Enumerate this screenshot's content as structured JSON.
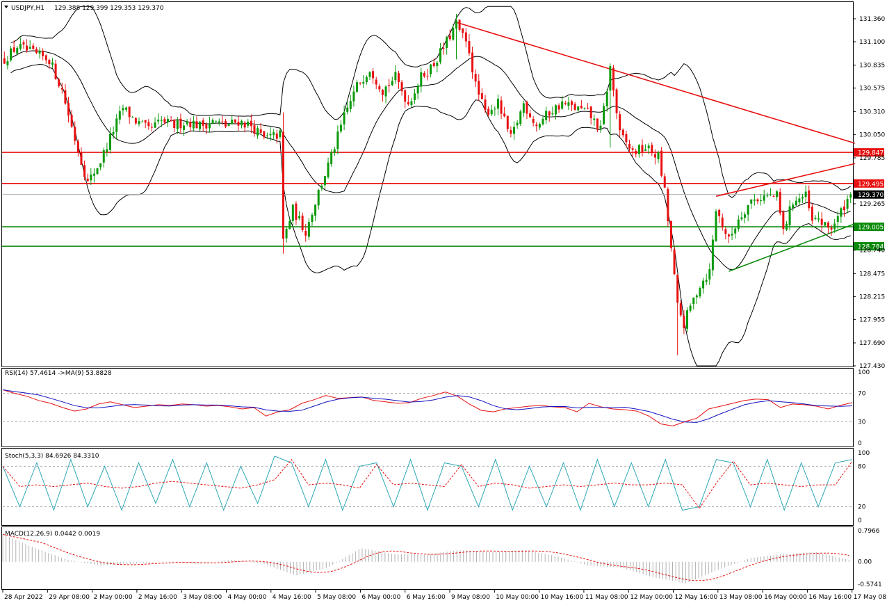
{
  "chart_data": [
    {
      "type": "candlestick",
      "symbol_label": "USDJPY,H1",
      "ohlc_label": "129.388 129.399 129.353 129.370",
      "ylim": [
        127.4,
        131.5
      ],
      "y_ticks": [
        "131.360",
        "131.100",
        "130.835",
        "130.575",
        "130.310",
        "130.050",
        "129.785",
        "129.265",
        "128.740",
        "128.475",
        "128.215",
        "127.955",
        "127.690",
        "127.430"
      ],
      "x_ticks": [
        "28 Apr 2022",
        "29 Apr 08:00",
        "2 May 00:00",
        "2 May 16:00",
        "3 May 08:00",
        "4 May 00:00",
        "4 May 16:00",
        "5 May 08:00",
        "6 May 00:00",
        "6 May 16:00",
        "9 May 08:00",
        "10 May 00:00",
        "10 May 16:00",
        "11 May 08:00",
        "12 May 00:00",
        "12 May 16:00",
        "13 May 08:00",
        "16 May 00:00",
        "16 May 16:00",
        "17 May 08:00"
      ],
      "price_path": [
        [
          0,
          130.9
        ],
        [
          4,
          131.05
        ],
        [
          10,
          130.95
        ],
        [
          14,
          130.9
        ],
        [
          18,
          130.55
        ],
        [
          22,
          130.0
        ],
        [
          26,
          129.5
        ],
        [
          30,
          129.75
        ],
        [
          34,
          130.1
        ],
        [
          37,
          130.35
        ],
        [
          41,
          130.2
        ],
        [
          45,
          130.1
        ],
        [
          49,
          130.2
        ],
        [
          53,
          130.15
        ],
        [
          57,
          130.2
        ],
        [
          61,
          130.15
        ],
        [
          65,
          130.2
        ],
        [
          69,
          130.15
        ],
        [
          73,
          130.2
        ],
        [
          77,
          130.15
        ],
        [
          81,
          130.0
        ],
        [
          86,
          130.05
        ],
        [
          87,
          128.85
        ],
        [
          90,
          129.2
        ],
        [
          94,
          128.95
        ],
        [
          98,
          129.4
        ],
        [
          102,
          129.8
        ],
        [
          106,
          130.25
        ],
        [
          110,
          130.6
        ],
        [
          114,
          130.8
        ],
        [
          118,
          130.55
        ],
        [
          122,
          130.7
        ],
        [
          126,
          130.4
        ],
        [
          130,
          130.7
        ],
        [
          134,
          130.85
        ],
        [
          138,
          131.1
        ],
        [
          141,
          131.3
        ],
        [
          143,
          131.15
        ],
        [
          145,
          131.0
        ],
        [
          147,
          130.6
        ],
        [
          150,
          130.3
        ],
        [
          154,
          130.4
        ],
        [
          158,
          130.0
        ],
        [
          162,
          130.4
        ],
        [
          166,
          130.15
        ],
        [
          170,
          130.3
        ],
        [
          174,
          130.4
        ],
        [
          178,
          130.35
        ],
        [
          182,
          130.3
        ],
        [
          186,
          130.1
        ],
        [
          189,
          130.8
        ],
        [
          192,
          130.05
        ],
        [
          196,
          129.85
        ],
        [
          200,
          129.9
        ],
        [
          204,
          129.8
        ],
        [
          206,
          129.4
        ],
        [
          208,
          128.75
        ],
        [
          210,
          128.1
        ],
        [
          212,
          127.9
        ],
        [
          214,
          128.1
        ],
        [
          217,
          128.35
        ],
        [
          220,
          128.5
        ],
        [
          222,
          129.2
        ],
        [
          226,
          128.85
        ],
        [
          229,
          129.1
        ],
        [
          233,
          129.3
        ],
        [
          237,
          129.35
        ],
        [
          241,
          129.35
        ],
        [
          243,
          128.95
        ],
        [
          246,
          129.3
        ],
        [
          250,
          129.35
        ],
        [
          252,
          129.05
        ],
        [
          254,
          129.1
        ],
        [
          256,
          129.0
        ],
        [
          258,
          129.0
        ],
        [
          260,
          129.1
        ],
        [
          262,
          129.25
        ],
        [
          264,
          129.37
        ]
      ],
      "indicators": [
        "Bollinger Bands",
        "Trendlines"
      ],
      "horizontal_levels": [
        {
          "value": "129.847",
          "color": "#e81010"
        },
        {
          "value": "129.495",
          "color": "#e81010"
        },
        {
          "value": "129.005",
          "color": "#0a8a0a"
        },
        {
          "value": "128.784",
          "color": "#0a8a0a"
        }
      ],
      "current_price": "129.370"
    },
    {
      "type": "line",
      "label": "RSI(14) 57.4614  ->MA(9) 53.8828",
      "ylim": [
        0,
        100
      ],
      "y_ticks": [
        "100",
        "70",
        "30",
        "0"
      ],
      "series": [
        {
          "values": [
            75,
            70,
            66,
            60,
            56,
            50,
            45,
            48,
            55,
            58,
            54,
            50,
            52,
            54,
            53,
            55,
            54,
            52,
            53,
            51,
            48,
            50,
            38,
            44,
            47,
            56,
            61,
            67,
            63,
            64,
            65,
            60,
            58,
            56,
            57,
            63,
            67,
            72,
            66,
            55,
            46,
            44,
            48,
            50,
            52,
            53,
            51,
            50,
            44,
            56,
            51,
            48,
            47,
            45,
            38,
            27,
            24,
            30,
            35,
            48,
            52,
            56,
            60,
            62,
            61,
            50,
            55,
            54,
            52,
            48,
            53,
            57
          ]
        }
      ]
    },
    {
      "type": "line",
      "label": "Stoch(5,3,3) 84.6926 84.3310",
      "ylim": [
        0,
        100
      ],
      "y_ticks": [
        "100",
        "80",
        "20",
        "0"
      ],
      "series": [
        {
          "values": [
            80,
            20,
            85,
            15,
            90,
            20,
            80,
            15,
            85,
            25,
            90,
            20,
            85,
            15,
            80,
            25,
            95,
            85,
            20,
            90,
            15,
            80,
            85,
            20,
            90,
            15,
            85,
            80,
            20,
            90,
            15,
            80,
            20,
            85,
            15,
            90,
            20,
            85,
            20,
            90,
            15,
            20,
            90,
            85,
            20,
            90,
            15,
            85,
            20,
            85,
            90
          ]
        }
      ]
    },
    {
      "type": "bar",
      "label": "MACD(12,26,9) 0.0442 0.0019",
      "ylim": [
        -0.5741,
        0.7966
      ],
      "y_ticks": [
        "0.7966",
        "0.00",
        "-0.5741"
      ],
      "values": [
        0.7,
        0.35,
        0.05,
        -0.1,
        -0.05,
        0.0,
        -0.05,
        0.05,
        -0.05,
        -0.35,
        -0.15,
        0.35,
        0.2,
        0.18,
        0.3,
        0.25,
        0.3,
        0.15,
        -0.1,
        -0.15,
        -0.4,
        -0.55,
        -0.2,
        0.1,
        0.2,
        0.25,
        0.05
      ]
    }
  ]
}
